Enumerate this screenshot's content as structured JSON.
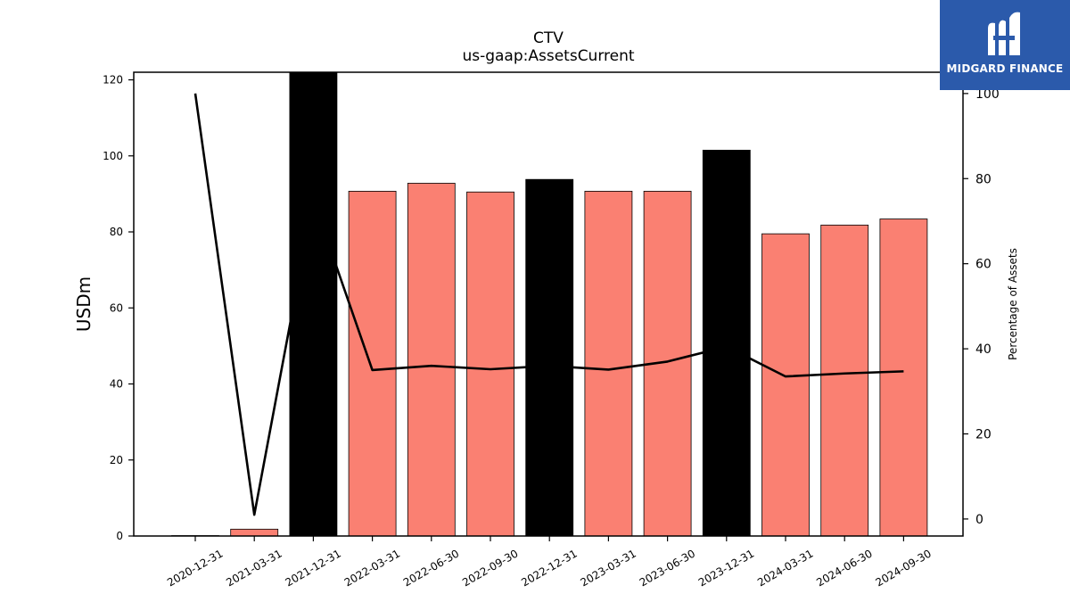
{
  "logo": {
    "text": "MIDGARD FINANCE",
    "icon": "midgard-m-icon",
    "background": "#2b5aab"
  },
  "chart_data": {
    "type": "bar",
    "title": "CTV",
    "subtitle": "us-gaap:AssetsCurrent",
    "ylabel": "USDm",
    "y2label": "Percentage of Assets",
    "ylim": [
      0,
      122
    ],
    "y2lim": [
      -4,
      105
    ],
    "yticks": [
      0,
      20,
      40,
      60,
      80,
      100,
      120
    ],
    "y2ticks": [
      0,
      20,
      40,
      60,
      80,
      100
    ],
    "categories": [
      "2020-12-31",
      "2021-03-31",
      "2021-12-31",
      "2022-03-31",
      "2022-06-30",
      "2022-09-30",
      "2022-12-31",
      "2023-03-31",
      "2023-06-30",
      "2023-12-31",
      "2024-03-31",
      "2024-06-30",
      "2024-09-30"
    ],
    "series": [
      {
        "type": "bar",
        "values": [
          0.1,
          1.8,
          122,
          90.7,
          92.8,
          90.5,
          93.8,
          90.7,
          90.7,
          101.5,
          79.5,
          81.8,
          83.4
        ],
        "colors": [
          "#fa8072",
          "#fa8072",
          "#000000",
          "#fa8072",
          "#fa8072",
          "#fa8072",
          "#000000",
          "#fa8072",
          "#fa8072",
          "#000000",
          "#fa8072",
          "#fa8072",
          "#fa8072"
        ]
      },
      {
        "type": "line",
        "axis": "right",
        "color": "#000000",
        "values": [
          100,
          1,
          75,
          35,
          36,
          35.2,
          36,
          35.1,
          37,
          40.5,
          33.5,
          34.2,
          34.7
        ]
      }
    ],
    "grid": false,
    "legend": "none"
  }
}
